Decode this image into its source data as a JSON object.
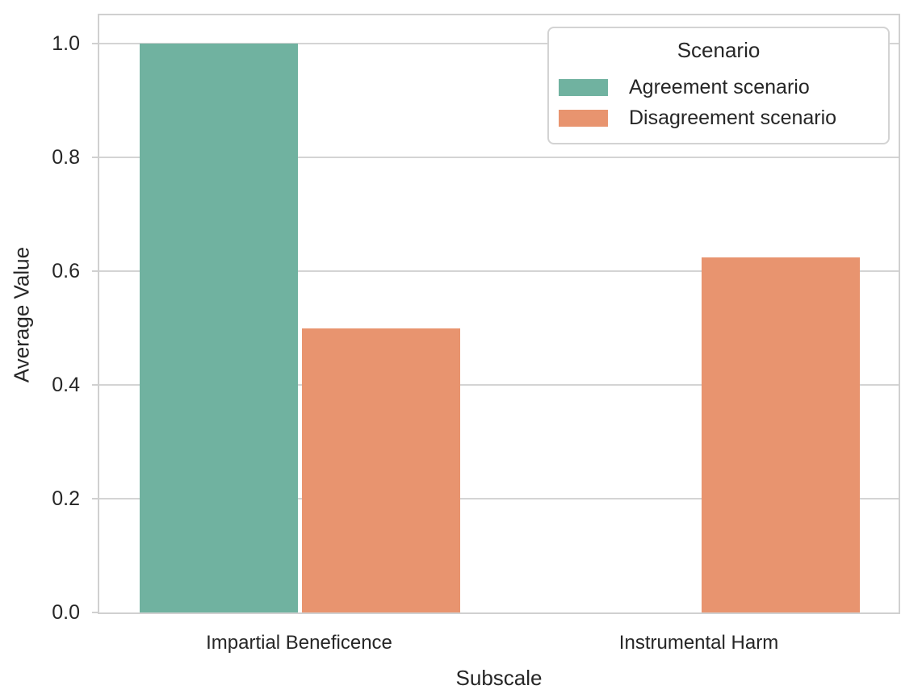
{
  "chart_data": {
    "type": "bar",
    "title": "",
    "xlabel": "Subscale",
    "ylabel": "Average Value",
    "categories": [
      "Impartial Beneficence",
      "Instrumental Harm"
    ],
    "series": [
      {
        "name": "Agreement scenario",
        "color": "#70b2a0",
        "values": [
          1.0,
          0.0
        ]
      },
      {
        "name": "Disagreement scenario",
        "color": "#e8946f",
        "values": [
          0.5,
          0.625
        ]
      }
    ],
    "legend": {
      "title": "Scenario",
      "position": "upper right"
    },
    "ylim": [
      0,
      1.05
    ],
    "yticks": [
      0.0,
      0.2,
      0.4,
      0.6,
      0.8,
      1.0
    ],
    "ytick_labels": [
      "0.0",
      "0.2",
      "0.4",
      "0.6",
      "0.8",
      "1.0"
    ],
    "grid": true,
    "style": {
      "background": "#ffffff",
      "grid_color": "#d4d4d4",
      "spine_color": "#d0d0d0",
      "text_color": "#262626"
    }
  }
}
